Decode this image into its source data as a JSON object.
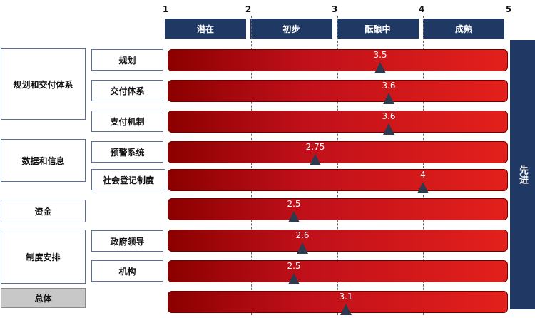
{
  "scale": {
    "ticks": [
      "1",
      "2",
      "3",
      "4",
      "5"
    ]
  },
  "stages": [
    "潜在",
    "初步",
    "酝酿中",
    "成熟"
  ],
  "advanced_label": "先进",
  "categories": [
    {
      "label": "规划和交付体系",
      "grey": false
    },
    {
      "label": "数据和信息",
      "grey": false
    },
    {
      "label": "资金",
      "grey": false
    },
    {
      "label": "制度安排",
      "grey": false
    },
    {
      "label": "总体",
      "grey": true
    }
  ],
  "chart_data": {
    "type": "bar",
    "xlim": [
      1,
      5
    ],
    "categories": [
      "规划",
      "交付体系",
      "支付机制",
      "预警系统",
      "社会登记制度",
      "资金",
      "政府领导",
      "机构",
      "总体"
    ],
    "values": [
      3.5,
      3.6,
      3.6,
      2.75,
      4,
      2.5,
      2.6,
      2.5,
      3.1
    ],
    "value_labels": [
      "3.5",
      "3.6",
      "3.6",
      "2.75",
      "4",
      "2.5",
      "2.6",
      "2.5",
      "3.1"
    ],
    "tick_labels": [
      "1",
      "2",
      "3",
      "4",
      "5"
    ],
    "stage_labels": [
      "潜在",
      "初步",
      "酝酿中",
      "成熟",
      "先进"
    ]
  },
  "rows": [
    {
      "sub_label": "规划"
    },
    {
      "sub_label": "交付体系"
    },
    {
      "sub_label": "支付机制"
    },
    {
      "sub_label": "预警系统"
    },
    {
      "sub_label": "社会登记制度"
    },
    {
      "sub_label": ""
    },
    {
      "sub_label": "政府领导"
    },
    {
      "sub_label": "机构"
    },
    {
      "sub_label": ""
    }
  ],
  "colors": {
    "header": "#1f3864",
    "bar_dark": "#8b0000",
    "bar_light": "#e3201b",
    "marker": "#2e3a4d"
  }
}
